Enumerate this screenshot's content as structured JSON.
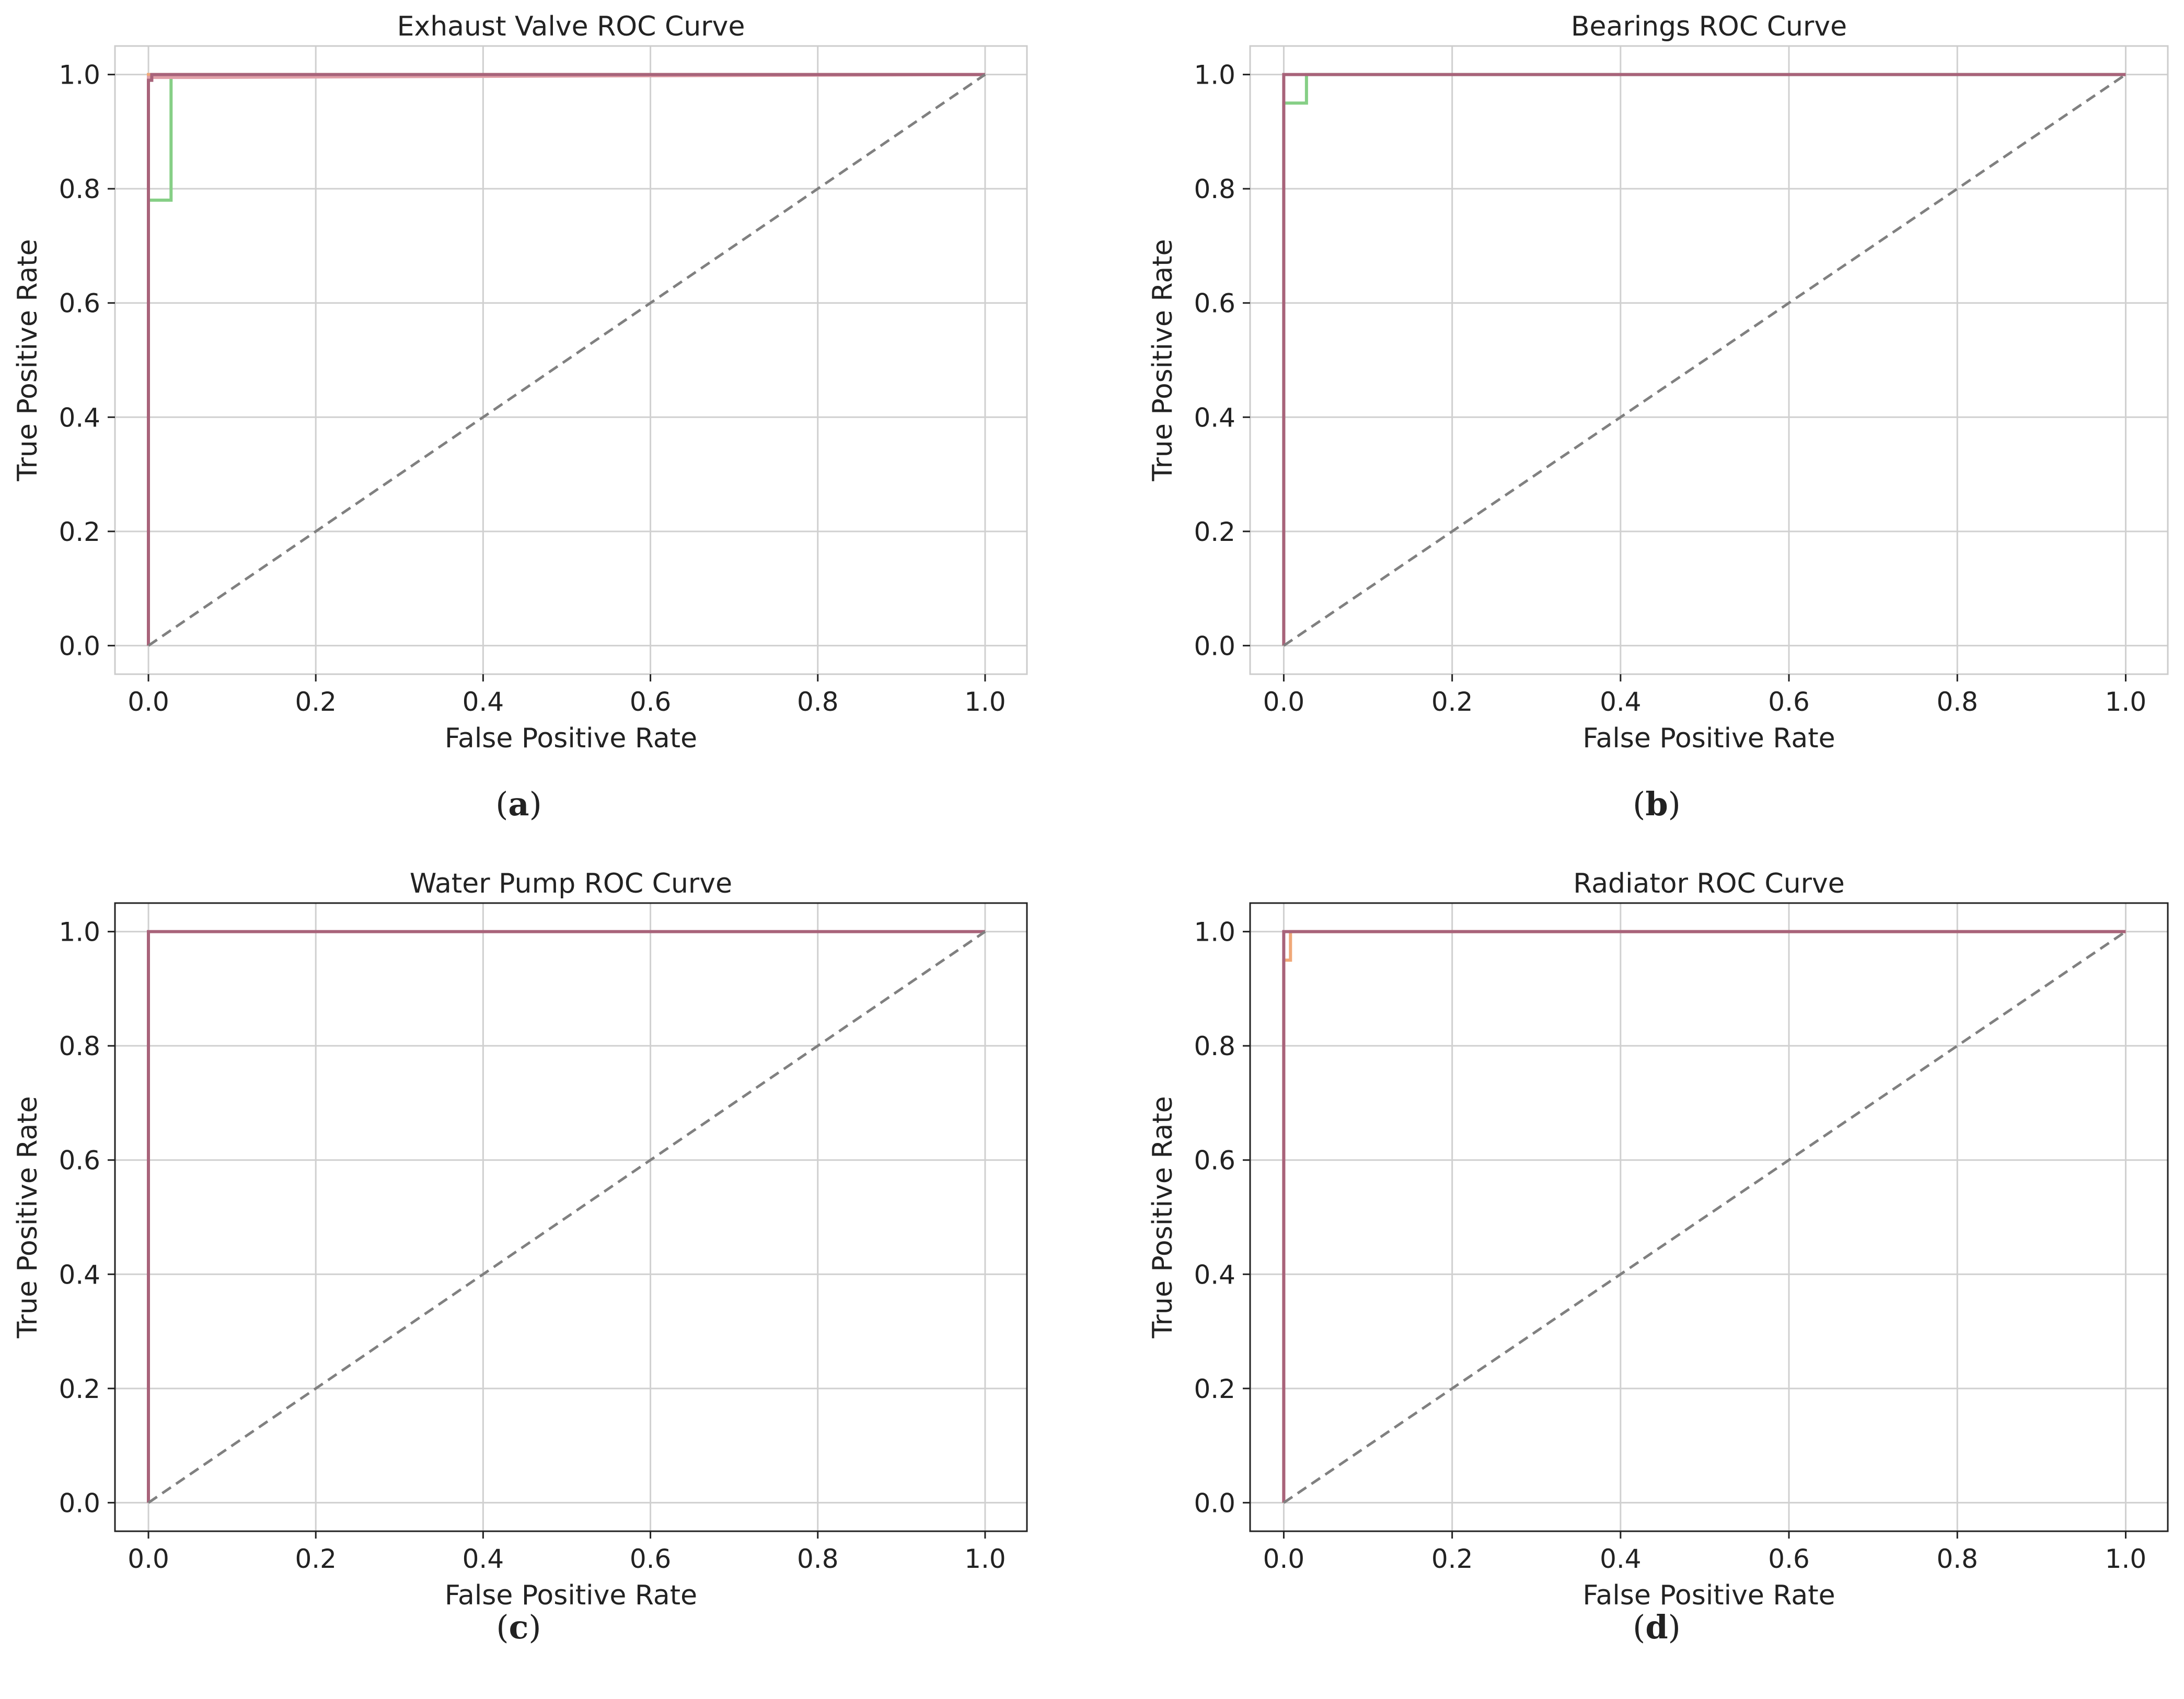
{
  "chart_data": [
    {
      "type": "line",
      "title": "Exhaust Valve ROC Curve",
      "xlabel": "False Positive Rate",
      "ylabel": "True Positive Rate",
      "xlim": [
        -0.04,
        1.05
      ],
      "ylim": [
        -0.05,
        1.05
      ],
      "xticks": [
        "0.0",
        "0.2",
        "0.4",
        "0.6",
        "0.8",
        "1.0"
      ],
      "yticks": [
        "0.0",
        "0.2",
        "0.4",
        "0.6",
        "0.8",
        "1.0"
      ],
      "panel_label": "a",
      "grid": true,
      "frame_color": "#cccccc",
      "series": [
        {
          "name": "class curve (green)",
          "color": "#86cf86",
          "x": [
            0,
            0,
            0.027,
            0.027,
            1
          ],
          "y": [
            0,
            0.78,
            0.78,
            1.0,
            1.0
          ]
        },
        {
          "name": "class curve (orange)",
          "color": "#f0a878",
          "x": [
            0,
            0,
            0.05,
            1
          ],
          "y": [
            0,
            1.0,
            1.0,
            1.0
          ]
        },
        {
          "name": "class curve (pink)",
          "color": "#e0a0a8",
          "x": [
            0,
            0,
            0.055,
            1
          ],
          "y": [
            0,
            0.995,
            0.995,
            1.0
          ]
        },
        {
          "name": "class curve (maroon)",
          "color": "#a8637a",
          "x": [
            0,
            0,
            0.004,
            0.004,
            1
          ],
          "y": [
            0,
            0.99,
            0.99,
            1.0,
            1.0
          ]
        },
        {
          "name": "chance",
          "color": "#808080",
          "dashed": true,
          "x": [
            0,
            1
          ],
          "y": [
            0,
            1
          ]
        }
      ]
    },
    {
      "type": "line",
      "title": "Bearings ROC Curve",
      "xlabel": "False Positive Rate",
      "ylabel": "True Positive Rate",
      "xlim": [
        -0.04,
        1.05
      ],
      "ylim": [
        -0.05,
        1.05
      ],
      "xticks": [
        "0.0",
        "0.2",
        "0.4",
        "0.6",
        "0.8",
        "1.0"
      ],
      "yticks": [
        "0.0",
        "0.2",
        "0.4",
        "0.6",
        "0.8",
        "1.0"
      ],
      "panel_label": "b",
      "grid": true,
      "frame_color": "#cccccc",
      "series": [
        {
          "name": "class curve (green)",
          "color": "#86cf86",
          "x": [
            0,
            0,
            0.027,
            0.027,
            1
          ],
          "y": [
            0,
            0.95,
            0.95,
            1.0,
            1.0
          ]
        },
        {
          "name": "class curve (maroon)",
          "color": "#a8637a",
          "x": [
            0,
            0,
            1
          ],
          "y": [
            0,
            1.0,
            1.0
          ]
        },
        {
          "name": "chance",
          "color": "#808080",
          "dashed": true,
          "x": [
            0,
            1
          ],
          "y": [
            0,
            1
          ]
        }
      ]
    },
    {
      "type": "line",
      "title": "Water Pump ROC Curve",
      "xlabel": "False Positive Rate",
      "ylabel": "True Positive Rate",
      "xlim": [
        -0.04,
        1.05
      ],
      "ylim": [
        -0.05,
        1.05
      ],
      "xticks": [
        "0.0",
        "0.2",
        "0.4",
        "0.6",
        "0.8",
        "1.0"
      ],
      "yticks": [
        "0.0",
        "0.2",
        "0.4",
        "0.6",
        "0.8",
        "1.0"
      ],
      "panel_label": "c",
      "grid": true,
      "frame_color": "#222222",
      "series": [
        {
          "name": "class curve (maroon)",
          "color": "#a8637a",
          "x": [
            0,
            0,
            1
          ],
          "y": [
            0,
            1.0,
            1.0
          ]
        },
        {
          "name": "chance",
          "color": "#808080",
          "dashed": true,
          "x": [
            0,
            1
          ],
          "y": [
            0,
            1
          ]
        }
      ]
    },
    {
      "type": "line",
      "title": "Radiator ROC Curve",
      "xlabel": "False Positive Rate",
      "ylabel": "True Positive Rate",
      "xlim": [
        -0.04,
        1.05
      ],
      "ylim": [
        -0.05,
        1.05
      ],
      "xticks": [
        "0.0",
        "0.2",
        "0.4",
        "0.6",
        "0.8",
        "1.0"
      ],
      "yticks": [
        "0.0",
        "0.2",
        "0.4",
        "0.6",
        "0.8",
        "1.0"
      ],
      "panel_label": "d",
      "grid": true,
      "frame_color": "#222222",
      "series": [
        {
          "name": "class curve (orange)",
          "color": "#f0a878",
          "x": [
            0,
            0,
            0.008,
            0.008,
            1
          ],
          "y": [
            0,
            0.95,
            0.95,
            1.0,
            1.0
          ]
        },
        {
          "name": "class curve (maroon)",
          "color": "#a8637a",
          "x": [
            0,
            0,
            1
          ],
          "y": [
            0,
            1.0,
            1.0
          ]
        },
        {
          "name": "chance",
          "color": "#808080",
          "dashed": true,
          "x": [
            0,
            1
          ],
          "y": [
            0,
            1
          ]
        }
      ]
    }
  ]
}
